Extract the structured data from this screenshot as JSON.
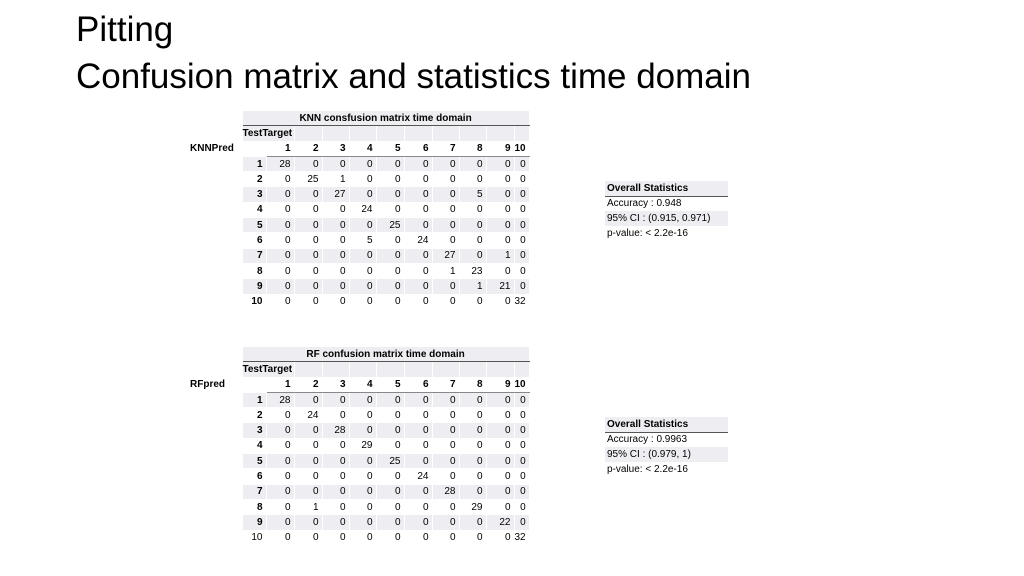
{
  "slide": {
    "title": "Pitting",
    "subtitle": "Confusion matrix and statistics time domain"
  },
  "tables": [
    {
      "title": "KNN consfusion matrix time domain",
      "target_label": "TestTarget",
      "pred_label": "KNNPred",
      "columns": [
        "1",
        "2",
        "3",
        "4",
        "5",
        "6",
        "7",
        "8",
        "9",
        "10"
      ],
      "rows": [
        {
          "label": "1",
          "bold": true,
          "values": [
            28,
            0,
            0,
            0,
            0,
            0,
            0,
            0,
            0,
            0
          ]
        },
        {
          "label": "2",
          "bold": true,
          "values": [
            0,
            25,
            1,
            0,
            0,
            0,
            0,
            0,
            0,
            0
          ]
        },
        {
          "label": "3",
          "bold": true,
          "values": [
            0,
            0,
            27,
            0,
            0,
            0,
            0,
            5,
            0,
            0
          ]
        },
        {
          "label": "4",
          "bold": true,
          "values": [
            0,
            0,
            0,
            24,
            0,
            0,
            0,
            0,
            0,
            0
          ]
        },
        {
          "label": "5",
          "bold": true,
          "values": [
            0,
            0,
            0,
            0,
            25,
            0,
            0,
            0,
            0,
            0
          ]
        },
        {
          "label": "6",
          "bold": true,
          "values": [
            0,
            0,
            0,
            5,
            0,
            24,
            0,
            0,
            0,
            0
          ]
        },
        {
          "label": "7",
          "bold": true,
          "values": [
            0,
            0,
            0,
            0,
            0,
            0,
            27,
            0,
            1,
            0
          ]
        },
        {
          "label": "8",
          "bold": true,
          "values": [
            0,
            0,
            0,
            0,
            0,
            0,
            1,
            23,
            0,
            0
          ]
        },
        {
          "label": "9",
          "bold": true,
          "values": [
            0,
            0,
            0,
            0,
            0,
            0,
            0,
            1,
            21,
            0
          ]
        },
        {
          "label": "10",
          "bold": true,
          "values": [
            0,
            0,
            0,
            0,
            0,
            0,
            0,
            0,
            0,
            32
          ]
        }
      ],
      "stats": {
        "heading": "Overall Statistics",
        "lines": [
          "Accuracy : 0.948",
          "95% CI : (0.915, 0.971)",
          "p-value: < 2.2e-16"
        ]
      }
    },
    {
      "title": "RF confusion matrix time domain",
      "target_label": "TestTarget",
      "pred_label": "RFpred",
      "columns": [
        "1",
        "2",
        "3",
        "4",
        "5",
        "6",
        "7",
        "8",
        "9",
        "10"
      ],
      "rows": [
        {
          "label": "1",
          "bold": true,
          "values": [
            28,
            0,
            0,
            0,
            0,
            0,
            0,
            0,
            0,
            0
          ]
        },
        {
          "label": "2",
          "bold": true,
          "values": [
            0,
            24,
            0,
            0,
            0,
            0,
            0,
            0,
            0,
            0
          ]
        },
        {
          "label": "3",
          "bold": true,
          "values": [
            0,
            0,
            28,
            0,
            0,
            0,
            0,
            0,
            0,
            0
          ]
        },
        {
          "label": "4",
          "bold": true,
          "values": [
            0,
            0,
            0,
            29,
            0,
            0,
            0,
            0,
            0,
            0
          ]
        },
        {
          "label": "5",
          "bold": true,
          "values": [
            0,
            0,
            0,
            0,
            25,
            0,
            0,
            0,
            0,
            0
          ]
        },
        {
          "label": "6",
          "bold": true,
          "values": [
            0,
            0,
            0,
            0,
            0,
            24,
            0,
            0,
            0,
            0
          ]
        },
        {
          "label": "7",
          "bold": true,
          "values": [
            0,
            0,
            0,
            0,
            0,
            0,
            28,
            0,
            0,
            0
          ]
        },
        {
          "label": "8",
          "bold": true,
          "values": [
            0,
            1,
            0,
            0,
            0,
            0,
            0,
            29,
            0,
            0
          ]
        },
        {
          "label": "9",
          "bold": true,
          "values": [
            0,
            0,
            0,
            0,
            0,
            0,
            0,
            0,
            22,
            0
          ]
        },
        {
          "label": "10",
          "bold": false,
          "values": [
            0,
            0,
            0,
            0,
            0,
            0,
            0,
            0,
            0,
            32
          ]
        }
      ],
      "stats": {
        "heading": "Overall Statistics",
        "lines": [
          "Accuracy : 0.9963",
          "95% CI : (0.979, 1)",
          "p-value: < 2.2e-16"
        ]
      }
    }
  ]
}
